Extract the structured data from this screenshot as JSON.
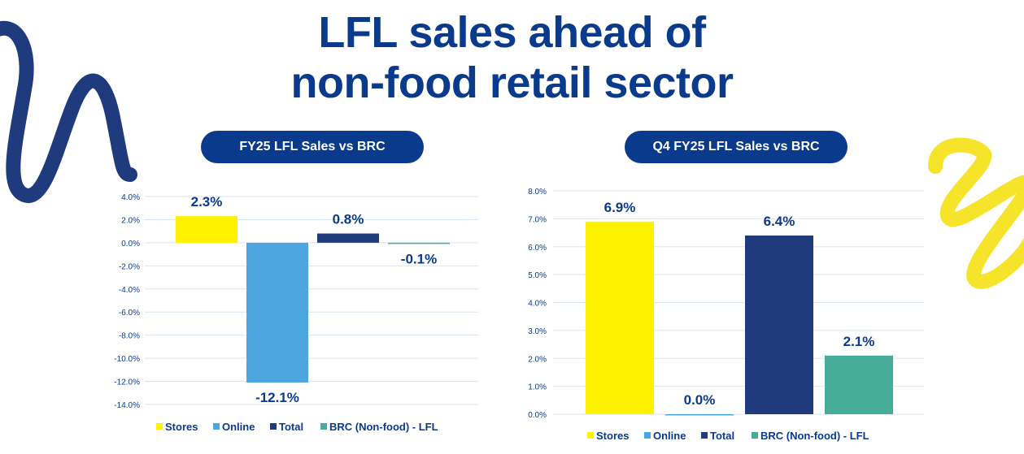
{
  "title": {
    "line1": "LFL sales ahead of",
    "line2": "non-food retail sector"
  },
  "colors": {
    "title": "#0a3a8c",
    "stores": "#fff200",
    "online": "#4da6df",
    "total": "#1f3a7d",
    "brc": "#46ad99",
    "grid": "#d9e6f2",
    "squiggle_left": "#1f3a7d",
    "squiggle_right": "#f5e42a"
  },
  "chart_data": [
    {
      "type": "bar",
      "title": "FY25 LFL Sales vs BRC",
      "categories": [
        "Stores",
        "Online",
        "Total",
        "BRC (Non-food) - LFL"
      ],
      "values": [
        2.3,
        -12.1,
        0.8,
        -0.1
      ],
      "data_labels": [
        "2.3%",
        "-12.1%",
        "0.8%",
        "-0.1%"
      ],
      "ylim": [
        -14.0,
        4.0
      ],
      "yticks": [
        "4.0%",
        "2.0%",
        "0.0%",
        "-2.0%",
        "-4.0%",
        "-6.0%",
        "-8.0%",
        "-10.0%",
        "-12.0%",
        "-14.0%"
      ],
      "grid": true,
      "legend": "bottom",
      "xlabel": "",
      "ylabel": ""
    },
    {
      "type": "bar",
      "title": "Q4 FY25 LFL Sales vs BRC",
      "categories": [
        "Stores",
        "Online",
        "Total",
        "BRC (Non-food) - LFL"
      ],
      "values": [
        6.9,
        0.0,
        6.4,
        2.1
      ],
      "data_labels": [
        "6.9%",
        "0.0%",
        "6.4%",
        "2.1%"
      ],
      "ylim": [
        0.0,
        8.0
      ],
      "yticks": [
        "8.0%",
        "7.0%",
        "6.0%",
        "5.0%",
        "4.0%",
        "3.0%",
        "2.0%",
        "1.0%",
        "0.0%"
      ],
      "grid": true,
      "legend": "bottom",
      "xlabel": "",
      "ylabel": ""
    }
  ]
}
